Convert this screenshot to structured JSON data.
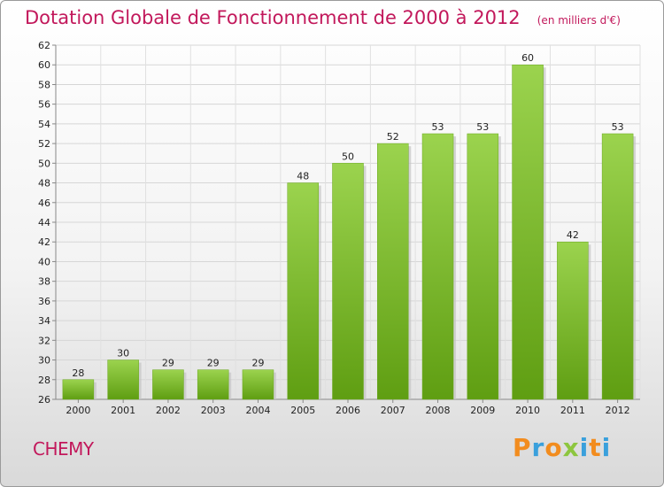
{
  "title": "Dotation Globale de Fonctionnement de 2000 à 2012",
  "unit": "(en milliers d'€)",
  "commune": "CHEMY",
  "logo": {
    "letters": [
      "P",
      "r",
      "o",
      "x",
      "i",
      "t",
      "i"
    ],
    "colors": [
      "#f28c1e",
      "#3aa0dc",
      "#f28c1e",
      "#8dc63f",
      "#3aa0dc",
      "#f28c1e",
      "#3aa0dc"
    ]
  },
  "chart_data": {
    "type": "bar",
    "title": "Dotation Globale de Fonctionnement de 2000 à 2012",
    "subtitle": "(en milliers d'€)",
    "categories": [
      "2000",
      "2001",
      "2002",
      "2003",
      "2004",
      "2005",
      "2006",
      "2007",
      "2008",
      "2009",
      "2010",
      "2011",
      "2012"
    ],
    "values": [
      28,
      30,
      29,
      29,
      29,
      48,
      50,
      52,
      53,
      53,
      60,
      42,
      53
    ],
    "ylim": [
      26,
      62
    ],
    "yticks": [
      26,
      28,
      30,
      32,
      34,
      36,
      38,
      40,
      42,
      44,
      46,
      48,
      50,
      52,
      54,
      56,
      58,
      60,
      62
    ],
    "grid": true,
    "bar_color": "#7cb82f"
  }
}
